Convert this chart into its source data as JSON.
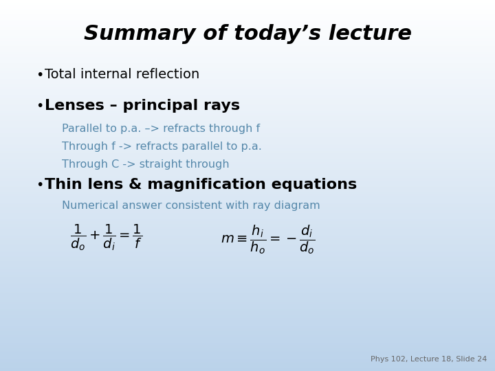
{
  "title": "Summary of today’s lecture",
  "background_top": "#ffffff",
  "background_bottom": "#bad2ea",
  "title_color": "#000000",
  "bullet_color": "#000000",
  "sub_color": "#5588aa",
  "footer_color": "#666666",
  "bullet1": "Total internal reflection",
  "bullet2": "Lenses – principal rays",
  "sub2a": "Parallel to p.a. –> refracts through f",
  "sub2b": "Through f -> refracts parallel to p.a.",
  "sub2c": "Through C -> straight through",
  "bullet3": "Thin lens & magnification equations",
  "sub3a": "Numerical answer consistent with ray diagram",
  "footer": "Phys 102, Lecture 18, Slide 24",
  "eq1": "$\\dfrac{1}{d_o} + \\dfrac{1}{d_i} = \\dfrac{1}{f}$",
  "eq2": "$m \\equiv \\dfrac{h_i}{h_o} = -\\dfrac{d_i}{d_o}$"
}
